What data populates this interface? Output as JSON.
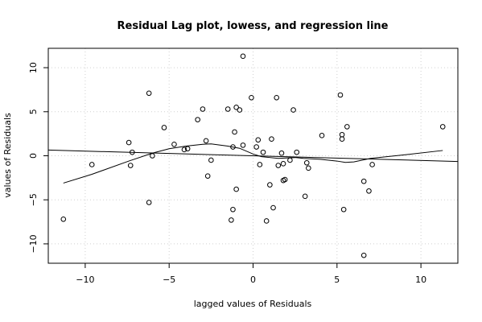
{
  "chart_data": {
    "type": "scatter",
    "title": "Residual Lag plot, lowess, and regression line",
    "xlabel": "lagged values of Residuals",
    "ylabel": "values of Residuals",
    "xlim": [
      -12.2,
      12.2
    ],
    "ylim": [
      -12.2,
      12.2
    ],
    "xticks": [
      -10,
      -5,
      0,
      5,
      10
    ],
    "yticks": [
      -10,
      -5,
      0,
      5,
      10
    ],
    "grid": true,
    "points": [
      [
        -11.3,
        -7.2
      ],
      [
        -9.6,
        -1.0
      ],
      [
        -7.4,
        1.5
      ],
      [
        -7.3,
        -1.1
      ],
      [
        -7.2,
        0.4
      ],
      [
        -6.2,
        7.1
      ],
      [
        -6.2,
        -5.3
      ],
      [
        -6.0,
        0.0
      ],
      [
        -5.3,
        3.2
      ],
      [
        -4.7,
        1.3
      ],
      [
        -4.1,
        0.7
      ],
      [
        -3.9,
        0.8
      ],
      [
        -3.3,
        4.1
      ],
      [
        -3.0,
        5.3
      ],
      [
        -2.8,
        1.7
      ],
      [
        -2.7,
        -2.3
      ],
      [
        -2.5,
        -0.5
      ],
      [
        -1.5,
        5.3
      ],
      [
        -1.3,
        -7.3
      ],
      [
        -1.2,
        1.0
      ],
      [
        -1.2,
        -6.1
      ],
      [
        -1.1,
        2.7
      ],
      [
        -1.0,
        5.5
      ],
      [
        -1.0,
        -3.8
      ],
      [
        -0.8,
        5.2
      ],
      [
        -0.6,
        11.3
      ],
      [
        -0.6,
        1.2
      ],
      [
        -0.1,
        6.6
      ],
      [
        0.2,
        1.0
      ],
      [
        0.3,
        1.8
      ],
      [
        0.4,
        -1.0
      ],
      [
        0.6,
        0.4
      ],
      [
        0.8,
        -7.4
      ],
      [
        1.0,
        -3.3
      ],
      [
        1.1,
        1.9
      ],
      [
        1.2,
        -5.9
      ],
      [
        1.4,
        6.6
      ],
      [
        1.5,
        -1.1
      ],
      [
        1.7,
        0.3
      ],
      [
        1.8,
        -0.9
      ],
      [
        1.8,
        -2.8
      ],
      [
        1.9,
        -2.7
      ],
      [
        2.2,
        -0.5
      ],
      [
        2.4,
        5.2
      ],
      [
        2.6,
        0.4
      ],
      [
        3.1,
        -4.6
      ],
      [
        3.2,
        -0.8
      ],
      [
        3.3,
        -1.4
      ],
      [
        4.1,
        2.3
      ],
      [
        5.2,
        6.9
      ],
      [
        5.3,
        2.4
      ],
      [
        5.3,
        1.9
      ],
      [
        5.4,
        -6.1
      ],
      [
        5.6,
        3.3
      ],
      [
        6.6,
        -2.9
      ],
      [
        6.6,
        -11.3
      ],
      [
        6.9,
        -4.0
      ],
      [
        7.1,
        -1.0
      ],
      [
        11.3,
        3.3
      ]
    ],
    "regression_line": {
      "intercept": 0.0,
      "slope": -0.053
    },
    "lowess": [
      [
        -11.3,
        -3.1
      ],
      [
        -9.6,
        -2.1
      ],
      [
        -7.4,
        -0.6
      ],
      [
        -6.0,
        0.3
      ],
      [
        -5.0,
        0.8
      ],
      [
        -4.0,
        1.1
      ],
      [
        -3.0,
        1.3
      ],
      [
        -2.5,
        1.35
      ],
      [
        -1.5,
        1.1
      ],
      [
        -0.8,
        0.85
      ],
      [
        0.0,
        0.2
      ],
      [
        0.5,
        -0.1
      ],
      [
        1.0,
        -0.2
      ],
      [
        1.5,
        -0.3
      ],
      [
        2.5,
        -0.2
      ],
      [
        3.0,
        -0.3
      ],
      [
        4.0,
        -0.4
      ],
      [
        5.0,
        -0.6
      ],
      [
        5.5,
        -0.75
      ],
      [
        6.0,
        -0.7
      ],
      [
        7.0,
        -0.3
      ],
      [
        9.0,
        0.1
      ],
      [
        11.3,
        0.6
      ]
    ]
  }
}
